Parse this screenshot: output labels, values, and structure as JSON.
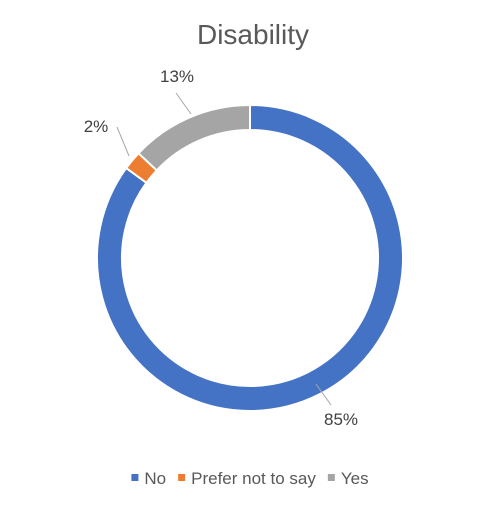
{
  "chart_data": {
    "type": "pie",
    "variant": "doughnut",
    "title": "Disability",
    "categories": [
      "No",
      "Prefer not to say",
      "Yes"
    ],
    "values": [
      85,
      2,
      13
    ],
    "data_labels": [
      "85%",
      "2%",
      "13%"
    ],
    "colors": [
      "#4472C4",
      "#ED7D31",
      "#A5A5A5"
    ],
    "legend": {
      "position": "bottom",
      "entries": [
        "No",
        "Prefer not to say",
        "Yes"
      ]
    },
    "start_angle_deg": 0,
    "direction": "clockwise"
  }
}
